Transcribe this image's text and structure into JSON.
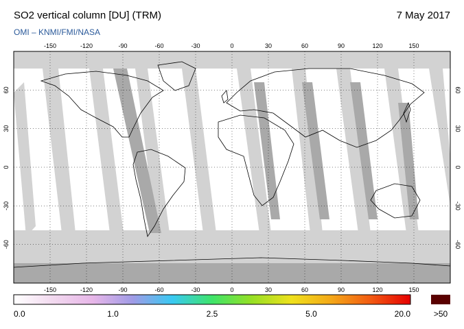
{
  "header": {
    "title": "SO2 vertical column [DU] (TRM)",
    "date": "7 May 2017",
    "source": "OMI  –  KNMI/FMI/NASA"
  },
  "map": {
    "projection": "equirectangular",
    "lon_ticks": [
      "-150",
      "-120",
      "-90",
      "-60",
      "-30",
      "0",
      "30",
      "60",
      "90",
      "120",
      "150"
    ],
    "lat_ticks": [
      "60",
      "30",
      "0",
      "-30",
      "-60"
    ],
    "lon_values": [
      -150,
      -120,
      -90,
      -60,
      -30,
      0,
      30,
      60,
      90,
      120,
      150
    ],
    "lat_values": [
      60,
      30,
      0,
      -30,
      -60
    ],
    "lon_range": [
      -180,
      180
    ],
    "lat_range": [
      -90,
      90
    ],
    "grid": "dotted",
    "colors": {
      "no_data": "#a9a9a9",
      "swath_light": "#d2d2d2",
      "swath_dark": "#a9a9a9",
      "low_value": "#ffffff",
      "coastline": "#000000"
    }
  },
  "colorbar": {
    "labels": [
      "0.0",
      "1.0",
      "2.5",
      "5.0",
      "20.0"
    ],
    "overflow_label": ">50",
    "overflow_color": "#5a0000",
    "stops": [
      "#ffffff",
      "#f2d9ef",
      "#e7b6e8",
      "#a09be6",
      "#39c9f2",
      "#3ee46a",
      "#96e024",
      "#efe11c",
      "#f4a818",
      "#f25a12",
      "#e60000"
    ]
  }
}
